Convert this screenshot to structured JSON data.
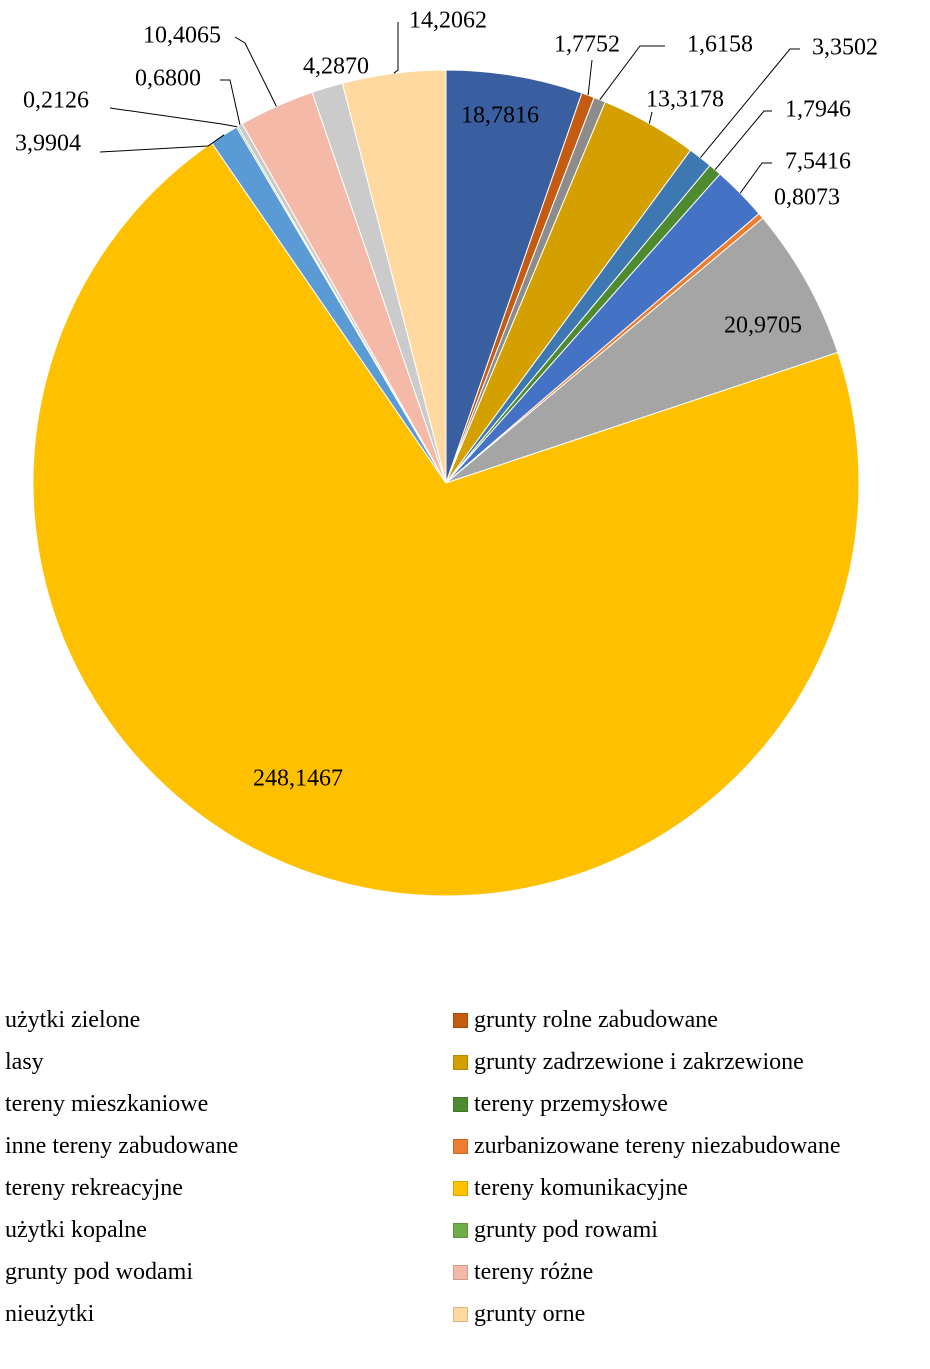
{
  "chart_data": {
    "type": "pie",
    "title": "",
    "slices": [
      {
        "label": "użytki zielone",
        "value": 18.7816,
        "display": "18,7816",
        "color": "#3A5FA0"
      },
      {
        "label": "grunty rolne zabudowane",
        "value": 1.7752,
        "display": "1,7752",
        "color": "#C55A11"
      },
      {
        "label": "lasy",
        "value": 1.6158,
        "display": "1,6158",
        "color": "#8C8C8C"
      },
      {
        "label": "grunty zadrzewione i zakrzewione",
        "value": 13.3178,
        "display": "13,3178",
        "color": "#D4A000"
      },
      {
        "label": "tereny mieszkaniowe",
        "value": 3.3502,
        "display": "3,3502",
        "color": "#3E78B2"
      },
      {
        "label": "tereny przemysłowe",
        "value": 1.7946,
        "display": "1,7946",
        "color": "#4E8A2E"
      },
      {
        "label": "inne tereny zabudowane",
        "value": 7.5416,
        "display": "7,5416",
        "color": "#4472C4"
      },
      {
        "label": "zurbanizowane tereny niezabudowane",
        "value": 0.8073,
        "display": "0,8073",
        "color": "#ED7D31"
      },
      {
        "label": "tereny rekreacyjne",
        "value": 20.9705,
        "display": "20,9705",
        "color": "#A5A5A5"
      },
      {
        "label": "tereny komunikacyjne",
        "value": 248.1467,
        "display": "248,1467",
        "color": "#FFC000"
      },
      {
        "label": "użytki kopalne",
        "value": 3.9904,
        "display": "3,9904",
        "color": "#5B9BD5"
      },
      {
        "label": "grunty pod rowami",
        "value": 0.2126,
        "display": "0,2126",
        "color": "#70AD47"
      },
      {
        "label": "grunty pod wodami",
        "value": 0.68,
        "display": "0,6800",
        "color": "#C9C9C9"
      },
      {
        "label": "tereny różne",
        "value": 10.4065,
        "display": "10,4065",
        "color": "#F4B9A7"
      },
      {
        "label": "nieużytki",
        "value": 4.287,
        "display": "4,2870",
        "color": "#CBCBCB"
      },
      {
        "label": "grunty orne",
        "value": 14.2062,
        "display": "14,2062",
        "color": "#FFD9A0"
      }
    ],
    "legend_position": "bottom",
    "legend_columns": 2
  }
}
